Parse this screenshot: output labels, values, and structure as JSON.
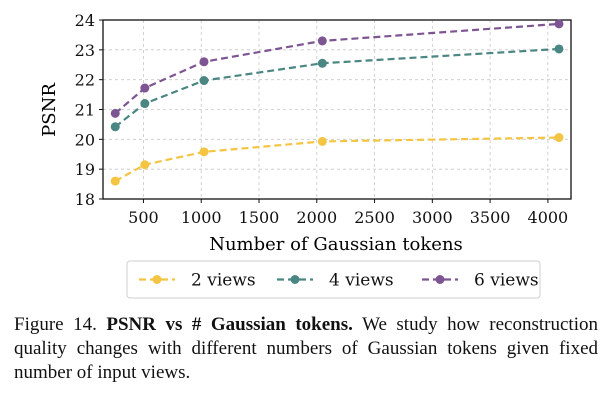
{
  "chart_data": {
    "type": "line",
    "xlabel": "Number of Gaussian tokens",
    "ylabel": "PSNR",
    "xlim": [
      150,
      4200
    ],
    "ylim": [
      18,
      24
    ],
    "xticks": [
      500,
      1000,
      1500,
      2000,
      2500,
      3000,
      3500,
      4000
    ],
    "yticks": [
      18,
      19,
      20,
      21,
      22,
      23,
      24
    ],
    "grid": true,
    "line_style": "dashed",
    "legend_position": "bottom",
    "x": [
      256,
      512,
      1024,
      2048,
      4096
    ],
    "series": [
      {
        "name": "2 views",
        "color": "#f4c542",
        "values": [
          18.6,
          19.15,
          19.58,
          19.93,
          20.06
        ]
      },
      {
        "name": "4 views",
        "color": "#4a8682",
        "values": [
          20.42,
          21.2,
          21.97,
          22.55,
          23.03
        ]
      },
      {
        "name": "6 views",
        "color": "#7d5593",
        "values": [
          20.87,
          21.72,
          22.6,
          23.3,
          23.87
        ]
      }
    ]
  },
  "caption": {
    "label": "Figure 14.",
    "bold": "PSNR vs # Gaussian tokens.",
    "text": "We study how reconstruction quality changes with different numbers of Gaussian tokens given fixed number of input views."
  }
}
